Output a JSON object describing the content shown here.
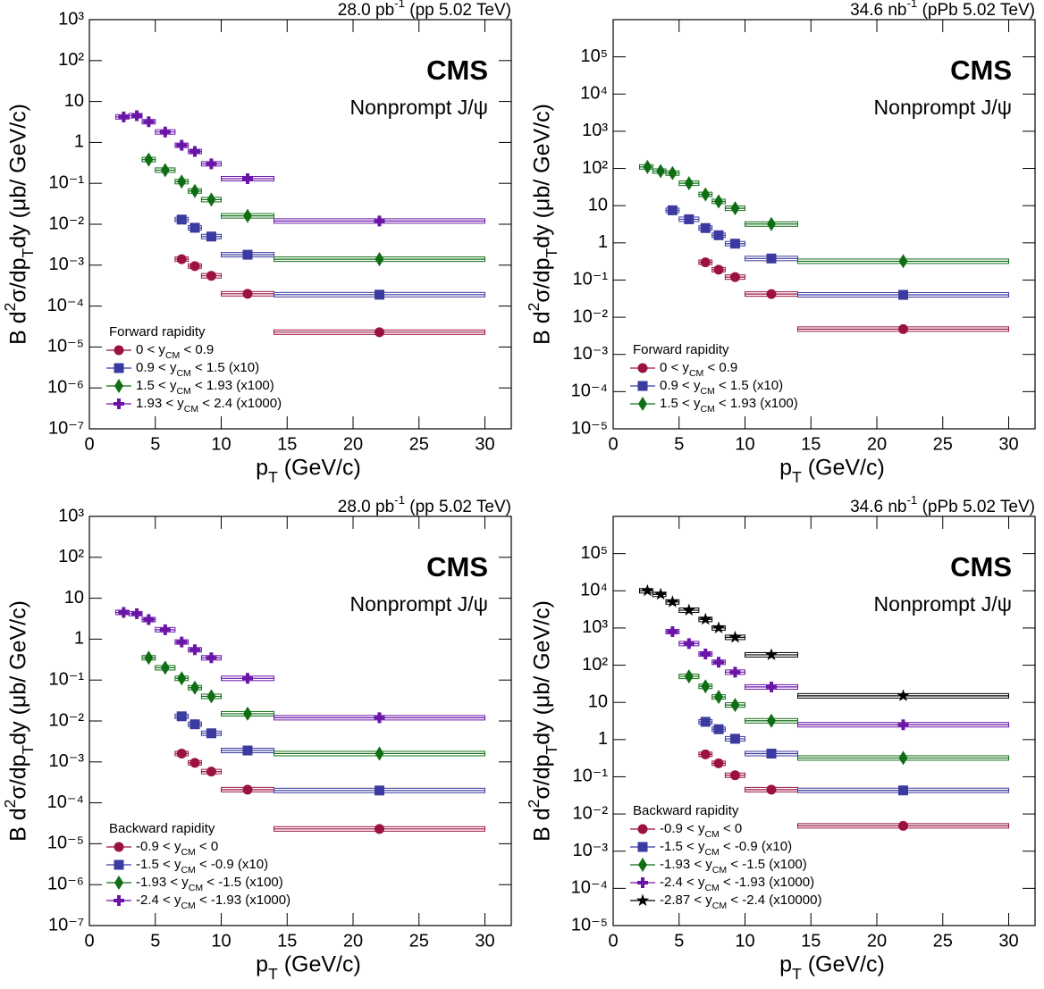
{
  "chart_data": [
    {
      "type": "scatter",
      "log_y": true,
      "annotation": "28.0 pb-1 (pp 5.02 TeV)",
      "title": "CMS",
      "subtitle": "Nonprompt J/ψ",
      "x_label": "pT (GeV/c)",
      "y_label": "B d2σ/dpTdy (μb/ GeV/c)",
      "legend_title": "Forward rapidity",
      "legend": "bottom-left",
      "xlim": [
        0,
        32
      ],
      "xticks": [
        0,
        5,
        10,
        15,
        20,
        25,
        30
      ],
      "ylim": [
        1e-07,
        1000
      ],
      "yticks": [
        {
          "value": 1e-07,
          "label": "10⁻⁷"
        },
        {
          "value": 1e-06,
          "label": "10⁻⁶"
        },
        {
          "value": 1e-05,
          "label": "10⁻⁵"
        },
        {
          "value": 0.0001,
          "label": "10⁻⁴"
        },
        {
          "value": 0.001,
          "label": "10⁻³"
        },
        {
          "value": 0.01,
          "label": "10⁻²"
        },
        {
          "value": 0.1,
          "label": "10⁻¹"
        },
        1,
        10,
        {
          "value": 100,
          "label": "10²"
        },
        {
          "value": 1000,
          "label": "10³"
        }
      ],
      "x": [
        2.6,
        3.6,
        4.5,
        5.75,
        7,
        8,
        9.25,
        12,
        22
      ],
      "bins": [
        2,
        3,
        4,
        5,
        6.5,
        7.5,
        8.5,
        10,
        14,
        30
      ],
      "series": [
        {
          "name": "0 < yCM < 0.9",
          "color": "#9b1240",
          "marker": "circle",
          "values": [
            null,
            null,
            null,
            null,
            0.0014,
            0.00095,
            0.00055,
            0.0002,
            2.3e-05
          ]
        },
        {
          "name": "0.9 < yCM < 1.5 (x10)",
          "color": "#3a3aa0",
          "marker": "square",
          "values": [
            null,
            null,
            null,
            null,
            0.013,
            0.0082,
            0.005,
            0.0018,
            0.00019
          ]
        },
        {
          "name": "1.5 < yCM < 1.93 (x100)",
          "color": "#0f6e14",
          "marker": "diamond",
          "values": [
            null,
            null,
            0.38,
            0.21,
            0.11,
            0.065,
            0.04,
            0.016,
            0.0014
          ]
        },
        {
          "name": "1.93 < yCM < 2.4 (x1000)",
          "color": "#6a14a8",
          "marker": "cross",
          "values": [
            4.2,
            4.5,
            3.2,
            1.8,
            0.85,
            0.6,
            0.3,
            0.13,
            0.012
          ]
        }
      ]
    },
    {
      "type": "scatter",
      "log_y": true,
      "annotation": "34.6 nb-1 (pPb 5.02 TeV)",
      "title": "CMS",
      "subtitle": "Nonprompt J/ψ",
      "x_label": "pT (GeV/c)",
      "y_label": "B d2σ/dpTdy (μb/ GeV/c)",
      "legend_title": "Forward rapidity",
      "legend": "bottom-left",
      "xlim": [
        0,
        32
      ],
      "xticks": [
        0,
        5,
        10,
        15,
        20,
        25,
        30
      ],
      "ylim": [
        1e-05,
        1000000
      ],
      "yticks": [
        {
          "value": 1e-05,
          "label": "10⁻⁵"
        },
        {
          "value": 0.0001,
          "label": "10⁻⁴"
        },
        {
          "value": 0.001,
          "label": "10⁻³"
        },
        {
          "value": 0.01,
          "label": "10⁻²"
        },
        {
          "value": 0.1,
          "label": "10⁻¹"
        },
        1,
        10,
        {
          "value": 100,
          "label": "10²"
        },
        {
          "value": 1000,
          "label": "10³"
        },
        {
          "value": 10000,
          "label": "10⁴"
        },
        {
          "value": 100000,
          "label": "10⁵"
        }
      ],
      "x": [
        2.6,
        3.6,
        4.5,
        5.75,
        7,
        8,
        9.25,
        12,
        22
      ],
      "bins": [
        2,
        3,
        4,
        5,
        6.5,
        7.5,
        8.5,
        10,
        14,
        30
      ],
      "series": [
        {
          "name": "0 < yCM < 0.9",
          "color": "#9b1240",
          "marker": "circle",
          "values": [
            null,
            null,
            null,
            null,
            0.3,
            0.19,
            0.12,
            0.042,
            0.0048
          ]
        },
        {
          "name": "0.9 < yCM < 1.5 (x10)",
          "color": "#3a3aa0",
          "marker": "square",
          "values": [
            null,
            null,
            7.5,
            4.3,
            2.5,
            1.6,
            0.95,
            0.38,
            0.04
          ]
        },
        {
          "name": "1.5 < yCM < 1.93 (x100)",
          "color": "#0f6e14",
          "marker": "diamond",
          "values": [
            110,
            85,
            75,
            40,
            20,
            13,
            8.5,
            3.2,
            0.32
          ]
        }
      ]
    },
    {
      "type": "scatter",
      "log_y": true,
      "annotation": "28.0 pb-1 (pp 5.02 TeV)",
      "title": "CMS",
      "subtitle": "Nonprompt J/ψ",
      "x_label": "pT (GeV/c)",
      "y_label": "B d2σ/dpTdy (μb/ GeV/c)",
      "legend_title": "Backward rapidity",
      "legend": "bottom-left",
      "xlim": [
        0,
        32
      ],
      "xticks": [
        0,
        5,
        10,
        15,
        20,
        25,
        30
      ],
      "ylim": [
        1e-07,
        1000
      ],
      "yticks": [
        {
          "value": 1e-07,
          "label": "10⁻⁷"
        },
        {
          "value": 1e-06,
          "label": "10⁻⁶"
        },
        {
          "value": 1e-05,
          "label": "10⁻⁵"
        },
        {
          "value": 0.0001,
          "label": "10⁻⁴"
        },
        {
          "value": 0.001,
          "label": "10⁻³"
        },
        {
          "value": 0.01,
          "label": "10⁻²"
        },
        {
          "value": 0.1,
          "label": "10⁻¹"
        },
        1,
        10,
        {
          "value": 100,
          "label": "10²"
        },
        {
          "value": 1000,
          "label": "10³"
        }
      ],
      "x": [
        2.6,
        3.6,
        4.5,
        5.75,
        7,
        8,
        9.25,
        12,
        22
      ],
      "bins": [
        2,
        3,
        4,
        5,
        6.5,
        7.5,
        8.5,
        10,
        14,
        30
      ],
      "series": [
        {
          "name": "-0.9 < yCM < 0",
          "color": "#9b1240",
          "marker": "circle",
          "values": [
            null,
            null,
            null,
            null,
            0.0016,
            0.00095,
            0.00058,
            0.00021,
            2.3e-05
          ]
        },
        {
          "name": "-1.5 < yCM < -0.9 (x10)",
          "color": "#3a3aa0",
          "marker": "square",
          "values": [
            null,
            null,
            null,
            null,
            0.013,
            0.0083,
            0.005,
            0.0019,
            0.0002
          ]
        },
        {
          "name": "-1.93 < yCM < -1.5 (x100)",
          "color": "#0f6e14",
          "marker": "diamond",
          "values": [
            null,
            null,
            0.35,
            0.2,
            0.11,
            0.065,
            0.04,
            0.015,
            0.0016
          ]
        },
        {
          "name": "-2.4 < yCM < -1.93 (x1000)",
          "color": "#6a14a8",
          "marker": "cross",
          "values": [
            4.5,
            4.2,
            3.0,
            1.7,
            0.85,
            0.55,
            0.35,
            0.11,
            0.012
          ]
        }
      ]
    },
    {
      "type": "scatter",
      "log_y": true,
      "annotation": "34.6 nb-1 (pPb 5.02 TeV)",
      "title": "CMS",
      "subtitle": "Nonprompt J/ψ",
      "x_label": "pT (GeV/c)",
      "y_label": "B d2σ/dpTdy (μb/ GeV/c)",
      "legend_title": "Backward rapidity",
      "legend": "bottom-left",
      "xlim": [
        0,
        32
      ],
      "xticks": [
        0,
        5,
        10,
        15,
        20,
        25,
        30
      ],
      "ylim": [
        1e-05,
        1000000
      ],
      "yticks": [
        {
          "value": 1e-05,
          "label": "10⁻⁵"
        },
        {
          "value": 0.0001,
          "label": "10⁻⁴"
        },
        {
          "value": 0.001,
          "label": "10⁻³"
        },
        {
          "value": 0.01,
          "label": "10⁻²"
        },
        {
          "value": 0.1,
          "label": "10⁻¹"
        },
        1,
        10,
        {
          "value": 100,
          "label": "10²"
        },
        {
          "value": 1000,
          "label": "10³"
        },
        {
          "value": 10000,
          "label": "10⁴"
        },
        {
          "value": 100000,
          "label": "10⁵"
        }
      ],
      "x": [
        2.6,
        3.6,
        4.5,
        5.75,
        7,
        8,
        9.25,
        12,
        22
      ],
      "bins": [
        2,
        3,
        4,
        5,
        6.5,
        7.5,
        8.5,
        10,
        14,
        30
      ],
      "series": [
        {
          "name": "-0.9 < yCM < 0",
          "color": "#9b1240",
          "marker": "circle",
          "values": [
            null,
            null,
            null,
            null,
            0.4,
            0.23,
            0.11,
            0.045,
            0.0048
          ]
        },
        {
          "name": "-1.5 < yCM < -0.9 (x10)",
          "color": "#3a3aa0",
          "marker": "square",
          "values": [
            null,
            null,
            null,
            null,
            3,
            1.9,
            1.05,
            0.42,
            0.043
          ]
        },
        {
          "name": "-1.93 < yCM < -1.5 (x100)",
          "color": "#0f6e14",
          "marker": "diamond",
          "values": [
            null,
            null,
            null,
            50,
            27,
            14,
            8.5,
            3.2,
            0.32
          ]
        },
        {
          "name": "-2.4 < yCM < -1.93 (x1000)",
          "color": "#6a14a8",
          "marker": "cross",
          "values": [
            null,
            null,
            800,
            380,
            200,
            120,
            65,
            26,
            2.5
          ]
        },
        {
          "name": "-2.87 < yCM < -2.4 (x10000)",
          "color": "#000000",
          "marker": "star",
          "values": [
            10000,
            8000,
            5000,
            3000,
            1700,
            1000,
            560,
            190,
            15
          ]
        }
      ]
    }
  ]
}
